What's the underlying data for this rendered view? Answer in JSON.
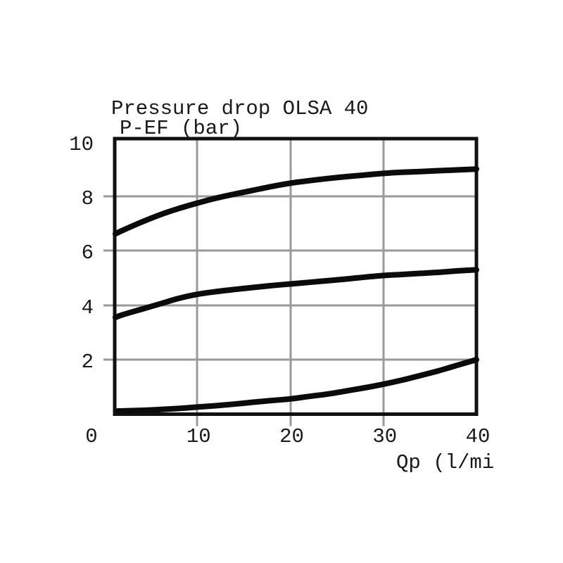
{
  "page": {
    "background": "#ffffff"
  },
  "chart_data": {
    "type": "line",
    "title": "Pressure drop OLSA 40",
    "ylabel": "P-EF (bar)",
    "xlabel": "Qp (l/mi",
    "xlim": [
      0,
      40
    ],
    "ylim": [
      0,
      10
    ],
    "x_ticks": [
      0,
      10,
      20,
      30,
      40
    ],
    "y_ticks": [
      10,
      8,
      6,
      4,
      2
    ],
    "x_gridlines": [
      10,
      20,
      30
    ],
    "y_gridlines": [
      8,
      6,
      4,
      2
    ],
    "grid": true,
    "legend_position": "none",
    "colors": {
      "curve": "#0b0b0b",
      "grid": "#9a9a9a",
      "frame": "#111111",
      "text": "#1a1a1a",
      "background": "#ffffff"
    },
    "series": [
      {
        "name": "curve-top",
        "x": [
          1.2,
          2,
          4,
          6,
          8,
          10,
          12,
          14,
          16,
          18,
          20,
          22,
          24,
          26,
          28,
          30,
          32,
          34,
          36,
          38,
          40
        ],
        "y": [
          6.62,
          6.75,
          7.05,
          7.32,
          7.55,
          7.75,
          7.93,
          8.08,
          8.22,
          8.36,
          8.48,
          8.57,
          8.65,
          8.72,
          8.78,
          8.84,
          8.88,
          8.91,
          8.94,
          8.97,
          9.0
        ]
      },
      {
        "name": "curve-middle",
        "x": [
          1.2,
          2,
          4,
          6,
          8,
          10,
          12,
          14,
          16,
          18,
          20,
          22,
          24,
          26,
          28,
          30,
          32,
          34,
          36,
          38,
          40
        ],
        "y": [
          3.55,
          3.65,
          3.85,
          4.05,
          4.25,
          4.4,
          4.5,
          4.58,
          4.65,
          4.72,
          4.78,
          4.84,
          4.9,
          4.96,
          5.03,
          5.09,
          5.13,
          5.17,
          5.21,
          5.26,
          5.3
        ]
      },
      {
        "name": "curve-bottom",
        "x": [
          1.5,
          2,
          4,
          6,
          8,
          10,
          12,
          14,
          16,
          18,
          20,
          22,
          24,
          26,
          28,
          30,
          32,
          34,
          36,
          38,
          40
        ],
        "y": [
          0.12,
          0.12,
          0.14,
          0.17,
          0.21,
          0.26,
          0.31,
          0.37,
          0.44,
          0.5,
          0.56,
          0.65,
          0.74,
          0.85,
          0.97,
          1.1,
          1.25,
          1.42,
          1.6,
          1.8,
          2.0
        ]
      }
    ]
  }
}
